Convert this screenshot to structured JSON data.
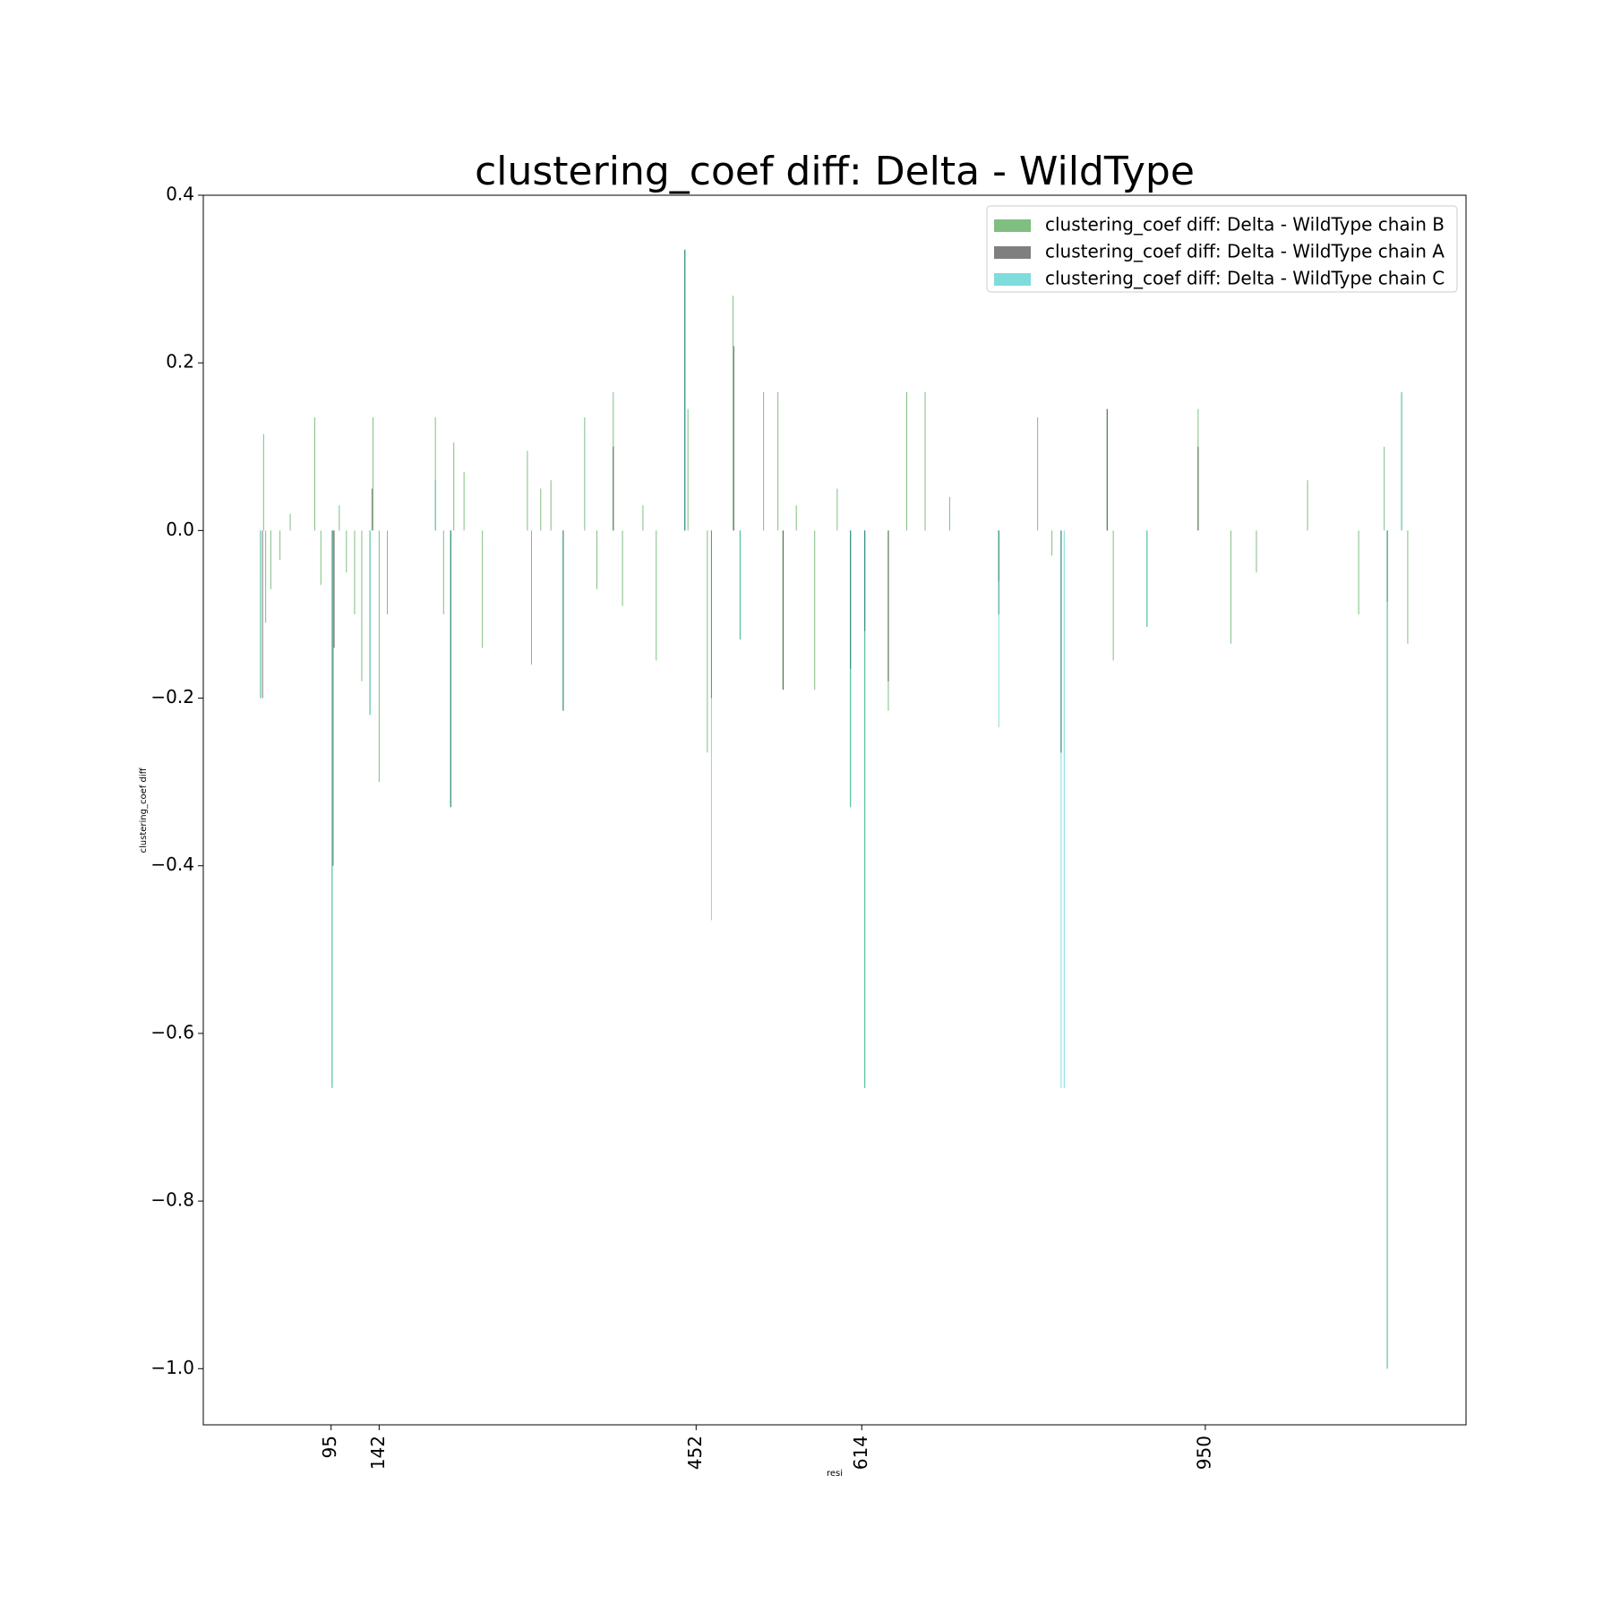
{
  "chart_data": {
    "type": "bar",
    "title": "clustering_coef diff: Delta - WildType",
    "x_label": "resi",
    "y_label": "clustering_coef diff",
    "xlim": [
      -30,
      1205
    ],
    "ylim": [
      -1.067,
      0.4
    ],
    "xticks": [
      95,
      142,
      452,
      614,
      950
    ],
    "yticks": [
      0.4,
      0.2,
      {
        "value": 0,
        "label": "0.0"
      },
      {
        "value": -0.2,
        "label": "−0.2"
      },
      {
        "value": -0.4,
        "label": "−0.4"
      },
      {
        "value": -0.6,
        "label": "−0.6"
      },
      {
        "value": -0.8,
        "label": "−0.8"
      },
      {
        "value": -1.0,
        "label": "−1.0"
      }
    ],
    "alpha": 0.5,
    "legend": "upper right",
    "series": [
      {
        "name": "clustering_coef diff: Delta - WildType chain B",
        "color": "#008000",
        "x": [
          26,
          29,
          31,
          36,
          45,
          55,
          79,
          85,
          96,
          103,
          110,
          118,
          125,
          133,
          136,
          142,
          150,
          197,
          205,
          212,
          215,
          225,
          243,
          287,
          291,
          300,
          310,
          322,
          343,
          355,
          371,
          380,
          400,
          413,
          441,
          444,
          463,
          488,
          495,
          518,
          532,
          537,
          550,
          568,
          590,
          603,
          617,
          640,
          658,
          676,
          700,
          748,
          786,
          800,
          809,
          854,
          860,
          893,
          943,
          975,
          1000,
          1050,
          1100,
          1125,
          1128,
          1142,
          1148
        ],
        "values": [
          -0.2,
          0.115,
          -0.11,
          -0.07,
          -0.035,
          0.02,
          0.135,
          -0.065,
          -0.665,
          0.03,
          -0.05,
          -0.1,
          -0.18,
          -0.22,
          0.135,
          -0.3,
          -0.1,
          0.135,
          -0.1,
          -0.33,
          0.105,
          0.07,
          -0.14,
          0.095,
          -0.16,
          0.05,
          0.06,
          -0.215,
          0.135,
          -0.07,
          0.165,
          -0.09,
          0.03,
          -0.155,
          0.335,
          0.145,
          -0.265,
          0.28,
          -0.13,
          0.165,
          0.165,
          -0.19,
          0.03,
          -0.19,
          0.05,
          -0.33,
          -0.665,
          -0.215,
          0.165,
          0.165,
          0.04,
          -0.06,
          0.135,
          -0.03,
          -0.265,
          0.145,
          -0.155,
          -0.115,
          0.145,
          -0.135,
          -0.05,
          0.06,
          -0.1,
          0.1,
          -1.0,
          0.165,
          -0.135
        ]
      },
      {
        "name": "clustering_coef diff: Delta - WildType chain A",
        "color": "#000000",
        "x": [
          28,
          97,
          98,
          135,
          212,
          322,
          371,
          441,
          467,
          489,
          537,
          603,
          617,
          640,
          748,
          809,
          854,
          943,
          1128
        ],
        "values": [
          -0.2,
          -0.4,
          -0.14,
          0.05,
          -0.33,
          -0.215,
          0.1,
          0.335,
          -0.2,
          0.22,
          -0.19,
          -0.165,
          -0.12,
          -0.18,
          -0.1,
          -0.265,
          0.145,
          0.1,
          -0.085
        ]
      },
      {
        "name": "clustering_coef diff: Delta - WildType chain C",
        "color": "#00baba",
        "x": [
          26,
          96,
          133,
          197,
          212,
          322,
          441,
          467,
          495,
          603,
          617,
          748,
          809,
          812,
          893,
          1128,
          1142
        ],
        "values": [
          -0.2,
          -0.665,
          -0.22,
          0.06,
          -0.33,
          -0.215,
          0.335,
          -0.465,
          -0.13,
          -0.33,
          -0.665,
          -0.235,
          -0.665,
          -0.665,
          -0.115,
          -1.0,
          0.165
        ]
      }
    ]
  }
}
